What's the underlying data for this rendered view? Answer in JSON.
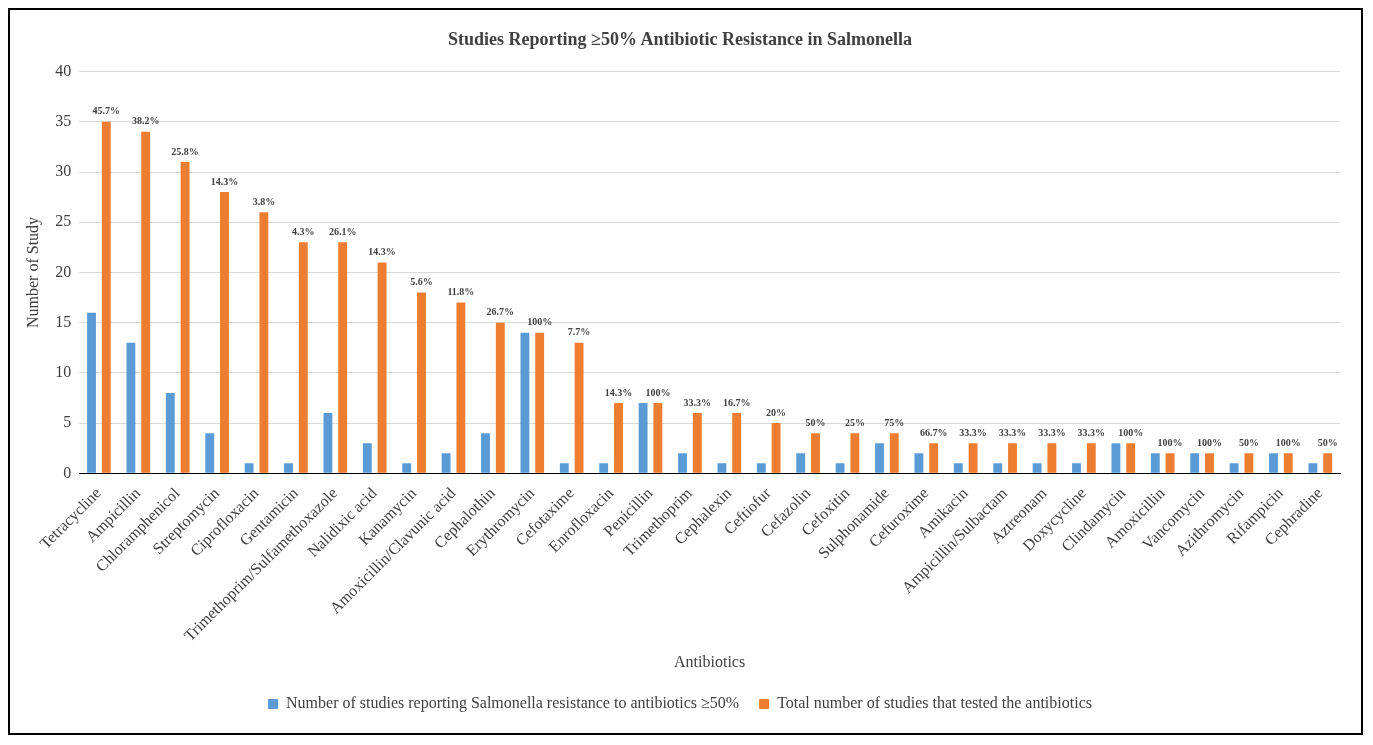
{
  "chart_data": {
    "type": "bar",
    "title": "Studies Reporting ≥50% Antibiotic Resistance in Salmonella",
    "xlabel": "Antibiotics",
    "ylabel": "Number of Study",
    "categories": [
      "Tetracycline",
      "Ampicillin",
      "Chloramphenicol",
      "Streptomycin",
      "Ciprofloxacin",
      "Gentamicin",
      "Trimethoprim/Sulfamethoxazole",
      "Nalidixic acid",
      "Kanamycin",
      "Amoxicillin/Clavunic acid",
      "Cephalothin",
      "Erythromycin",
      "Cefotaxime",
      "Enrofloxacin",
      "Penicillin",
      "Trimethoprim",
      "Cephalexin",
      "Ceftiofur",
      "Cefazolin",
      "Cefoxitin",
      "Sulphonamide",
      "Cefuroxime",
      "Amikacin",
      "Ampicillin/Sulbactam",
      "Aztreonam",
      "Doxycycline",
      "Clindamycin",
      "Amoxicillin",
      "Vancomycin",
      "Azithromycin",
      "Rifampicin",
      "Cephradine"
    ],
    "series": [
      {
        "name": "Number of studies reporting Salmonella resistance to antibiotics ≥50%",
        "color": "#5b9bd5",
        "values": [
          16,
          13,
          8,
          4,
          1,
          1,
          6,
          3,
          1,
          2,
          4,
          14,
          1,
          1,
          7,
          2,
          1,
          1,
          2,
          1,
          3,
          2,
          1,
          1,
          1,
          1,
          3,
          2,
          2,
          1,
          2,
          1
        ]
      },
      {
        "name": "Total number of studies that tested the antibiotics",
        "color": "#ed7d31",
        "values": [
          35,
          34,
          31,
          28,
          26,
          23,
          23,
          21,
          18,
          17,
          15,
          14,
          13,
          7,
          7,
          6,
          6,
          5,
          4,
          4,
          4,
          3,
          3,
          3,
          3,
          3,
          3,
          2,
          2,
          2,
          2,
          2
        ]
      }
    ],
    "annotations": [
      {
        "text": "45.7%",
        "x": "Tetracycline",
        "y": 35
      },
      {
        "text": "38.2%",
        "x": "Ampicillin",
        "y": 34
      },
      {
        "text": "25.8%",
        "x": "Chloramphenicol",
        "y": 31
      },
      {
        "text": "14.3%",
        "x": "Streptomycin",
        "y": 28
      },
      {
        "text": "3.8%",
        "x": "Ciprofloxacin",
        "y": 26
      },
      {
        "text": "4.3%",
        "x": "Gentamicin",
        "y": 23
      },
      {
        "text": "26.1%",
        "x": "Trimethoprim/Sulfamethoxazole",
        "y": 23
      },
      {
        "text": "14.3%",
        "x": "Nalidixic acid",
        "y": 21
      },
      {
        "text": "5.6%",
        "x": "Kanamycin",
        "y": 18
      },
      {
        "text": "11.8%",
        "x": "Amoxicillin/Clavunic acid",
        "y": 17
      },
      {
        "text": "26.7%",
        "x": "Cephalothin",
        "y": 15
      },
      {
        "text": "100%",
        "x": "Erythromycin",
        "y": 14
      },
      {
        "text": "7.7%",
        "x": "Cefotaxime",
        "y": 13
      },
      {
        "text": "14.3%",
        "x": "Enrofloxacin",
        "y": 7
      },
      {
        "text": "100%",
        "x": "Penicillin",
        "y": 7
      },
      {
        "text": "33.3%",
        "x": "Trimethoprim",
        "y": 6
      },
      {
        "text": "16.7%",
        "x": "Cephalexin",
        "y": 6
      },
      {
        "text": "20%",
        "x": "Ceftiofur",
        "y": 5
      },
      {
        "text": "50%",
        "x": "Cefazolin",
        "y": 4
      },
      {
        "text": "25%",
        "x": "Cefoxitin",
        "y": 4
      },
      {
        "text": "75%",
        "x": "Sulphonamide",
        "y": 4
      },
      {
        "text": "66.7%",
        "x": "Cefuroxime",
        "y": 3
      },
      {
        "text": "33.3%",
        "x": "Amikacin",
        "y": 3
      },
      {
        "text": "33.3%",
        "x": "Ampicillin/Sulbactam",
        "y": 3
      },
      {
        "text": "33.3%",
        "x": "Aztreonam",
        "y": 3
      },
      {
        "text": "33.3%",
        "x": "Doxycycline",
        "y": 3
      },
      {
        "text": "100%",
        "x": "Clindamycin",
        "y": 3
      },
      {
        "text": "100%",
        "x": "Amoxicillin",
        "y": 2
      },
      {
        "text": "100%",
        "x": "Vancomycin",
        "y": 2
      },
      {
        "text": "50%",
        "x": "Azithromycin",
        "y": 2
      },
      {
        "text": "100%",
        "x": "Rifampicin",
        "y": 2
      },
      {
        "text": "50%",
        "x": "Cephradine",
        "y": 2
      }
    ],
    "ylim": [
      0,
      40
    ],
    "yticks": [
      0,
      5,
      10,
      15,
      20,
      25,
      30,
      35,
      40
    ],
    "grid": "y",
    "legend": "bottom"
  }
}
